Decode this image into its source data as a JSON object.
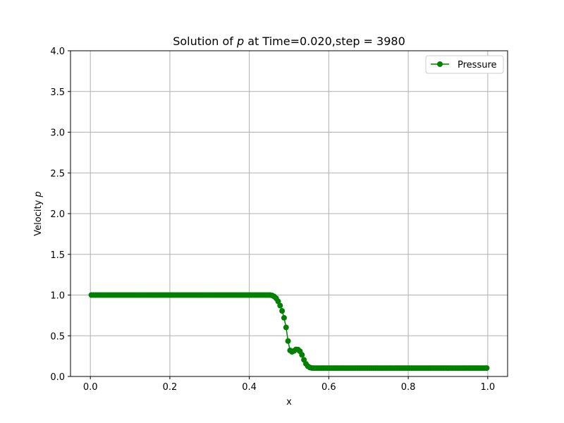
{
  "chart_data": {
    "type": "line",
    "title_parts": [
      "Solution of ",
      "p",
      " at Time=0.020,step = 3980"
    ],
    "xlabel": "x",
    "ylabel_parts": [
      "Velocity ",
      "p"
    ],
    "xlim": [
      -0.05,
      1.05
    ],
    "ylim": [
      0.0,
      4.0
    ],
    "xticks": [
      0.0,
      0.2,
      0.4,
      0.6,
      0.8,
      1.0
    ],
    "xtick_labels": [
      "0.0",
      "0.2",
      "0.4",
      "0.6",
      "0.8",
      "1.0"
    ],
    "yticks": [
      0.0,
      0.5,
      1.0,
      1.5,
      2.0,
      2.5,
      3.0,
      3.5,
      4.0
    ],
    "ytick_labels": [
      "0.0",
      "0.5",
      "1.0",
      "1.5",
      "2.0",
      "2.5",
      "3.0",
      "3.5",
      "4.0"
    ],
    "grid": true,
    "legend_position": "top-right",
    "series": [
      {
        "name": "Pressure",
        "color": "#008000",
        "marker": "circle",
        "points": [
          [
            0.0,
            1.0
          ],
          [
            0.455,
            1.0
          ],
          [
            0.46,
            0.99
          ],
          [
            0.465,
            0.975
          ],
          [
            0.47,
            0.945
          ],
          [
            0.475,
            0.9
          ],
          [
            0.48,
            0.84
          ],
          [
            0.485,
            0.77
          ],
          [
            0.49,
            0.67
          ],
          [
            0.495,
            0.535
          ],
          [
            0.5,
            0.335
          ],
          [
            0.505,
            0.305
          ],
          [
            0.51,
            0.3
          ],
          [
            0.515,
            0.33
          ],
          [
            0.52,
            0.335
          ],
          [
            0.525,
            0.325
          ],
          [
            0.53,
            0.295
          ],
          [
            0.535,
            0.235
          ],
          [
            0.54,
            0.175
          ],
          [
            0.545,
            0.135
          ],
          [
            0.55,
            0.115
          ],
          [
            0.555,
            0.105
          ],
          [
            0.56,
            0.103
          ],
          [
            1.0,
            0.103
          ]
        ]
      }
    ]
  }
}
